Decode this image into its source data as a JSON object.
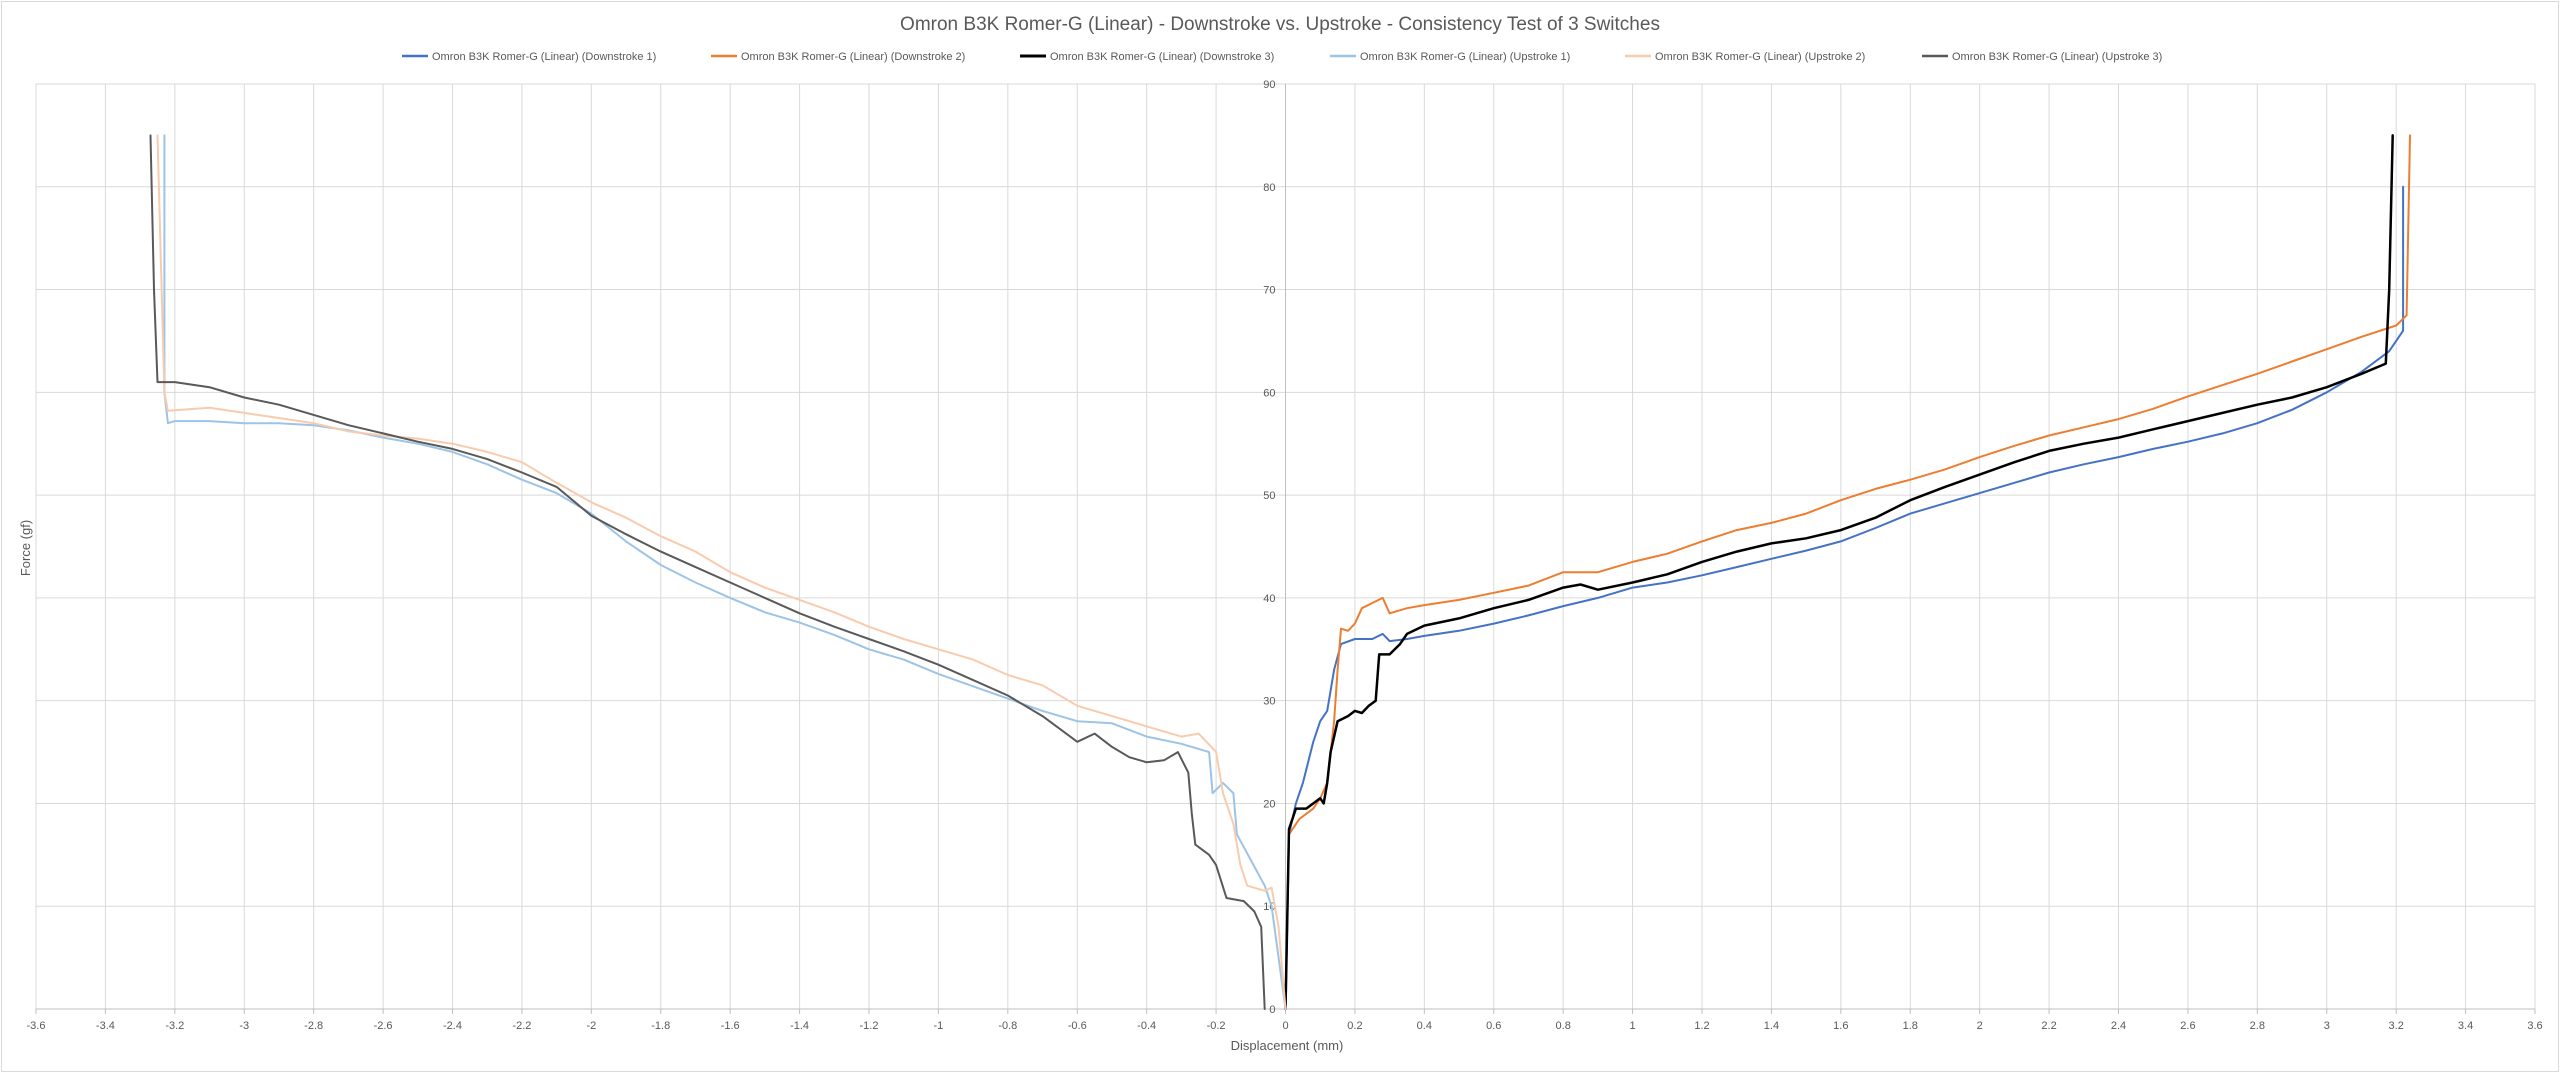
{
  "chart_data": {
    "type": "line",
    "title": "Omron B3K Romer-G (Linear) - Downstroke vs. Upstroke - Consistency Test of 3 Switches",
    "xlabel": "Displacement (mm)",
    "ylabel": "Force (gf)",
    "xlim": [
      -3.6,
      3.6
    ],
    "ylim": [
      0,
      90
    ],
    "x_ticks": [
      "-3.6",
      "-3.4",
      "-3.2",
      "-3",
      "-2.8",
      "-2.6",
      "-2.4",
      "-2.2",
      "-2",
      "-1.8",
      "-1.6",
      "-1.4",
      "-1.2",
      "-1",
      "-0.8",
      "-0.6",
      "-0.4",
      "-0.2",
      "0",
      "0.2",
      "0.4",
      "0.6",
      "0.8",
      "1",
      "1.2",
      "1.4",
      "1.6",
      "1.8",
      "2",
      "2.2",
      "2.4",
      "2.6",
      "2.8",
      "3",
      "3.2",
      "3.4",
      "3.6"
    ],
    "y_ticks": [
      "0",
      "10",
      "20",
      "30",
      "40",
      "50",
      "60",
      "70",
      "80",
      "90"
    ],
    "grid": true,
    "legend_position": "top",
    "series": [
      {
        "name": "Omron B3K Romer-G (Linear) (Downstroke 1)",
        "color": "#4472c4",
        "width": 2,
        "points": [
          [
            0,
            0
          ],
          [
            0.01,
            17
          ],
          [
            0.03,
            20
          ],
          [
            0.05,
            22
          ],
          [
            0.08,
            26
          ],
          [
            0.1,
            28
          ],
          [
            0.12,
            29
          ],
          [
            0.14,
            33
          ],
          [
            0.16,
            35.5
          ],
          [
            0.2,
            36
          ],
          [
            0.25,
            36
          ],
          [
            0.28,
            36.5
          ],
          [
            0.3,
            35.8
          ],
          [
            0.35,
            36
          ],
          [
            0.4,
            36.3
          ],
          [
            0.5,
            36.8
          ],
          [
            0.6,
            37.5
          ],
          [
            0.7,
            38.3
          ],
          [
            0.8,
            39.2
          ],
          [
            0.9,
            40
          ],
          [
            1.0,
            41
          ],
          [
            1.1,
            41.5
          ],
          [
            1.2,
            42.2
          ],
          [
            1.3,
            43
          ],
          [
            1.4,
            43.8
          ],
          [
            1.5,
            44.6
          ],
          [
            1.6,
            45.5
          ],
          [
            1.7,
            46.8
          ],
          [
            1.8,
            48.2
          ],
          [
            1.9,
            49.2
          ],
          [
            2.0,
            50.2
          ],
          [
            2.1,
            51.2
          ],
          [
            2.2,
            52.2
          ],
          [
            2.3,
            53
          ],
          [
            2.4,
            53.7
          ],
          [
            2.5,
            54.5
          ],
          [
            2.6,
            55.2
          ],
          [
            2.7,
            56
          ],
          [
            2.8,
            57
          ],
          [
            2.9,
            58.3
          ],
          [
            3.0,
            60
          ],
          [
            3.1,
            62
          ],
          [
            3.18,
            64
          ],
          [
            3.22,
            66
          ],
          [
            3.22,
            80
          ]
        ]
      },
      {
        "name": "Omron B3K Romer-G (Linear) (Downstroke 2)",
        "color": "#ed7d31",
        "width": 2,
        "points": [
          [
            0,
            0
          ],
          [
            0.01,
            17
          ],
          [
            0.04,
            18.5
          ],
          [
            0.08,
            19.5
          ],
          [
            0.1,
            20.5
          ],
          [
            0.12,
            22
          ],
          [
            0.14,
            28
          ],
          [
            0.15,
            33
          ],
          [
            0.16,
            37
          ],
          [
            0.18,
            36.8
          ],
          [
            0.2,
            37.5
          ],
          [
            0.22,
            39
          ],
          [
            0.25,
            39.5
          ],
          [
            0.28,
            40
          ],
          [
            0.3,
            38.5
          ],
          [
            0.35,
            39
          ],
          [
            0.4,
            39.3
          ],
          [
            0.5,
            39.8
          ],
          [
            0.6,
            40.5
          ],
          [
            0.7,
            41.2
          ],
          [
            0.8,
            42.5
          ],
          [
            0.9,
            42.5
          ],
          [
            1.0,
            43.5
          ],
          [
            1.1,
            44.3
          ],
          [
            1.2,
            45.5
          ],
          [
            1.3,
            46.6
          ],
          [
            1.4,
            47.3
          ],
          [
            1.5,
            48.2
          ],
          [
            1.6,
            49.5
          ],
          [
            1.7,
            50.6
          ],
          [
            1.8,
            51.5
          ],
          [
            1.9,
            52.5
          ],
          [
            2.0,
            53.7
          ],
          [
            2.1,
            54.8
          ],
          [
            2.2,
            55.8
          ],
          [
            2.3,
            56.6
          ],
          [
            2.4,
            57.4
          ],
          [
            2.5,
            58.4
          ],
          [
            2.6,
            59.6
          ],
          [
            2.7,
            60.7
          ],
          [
            2.8,
            61.8
          ],
          [
            2.9,
            63
          ],
          [
            3.0,
            64.2
          ],
          [
            3.1,
            65.4
          ],
          [
            3.2,
            66.5
          ],
          [
            3.23,
            67.5
          ],
          [
            3.24,
            85
          ]
        ]
      },
      {
        "name": "Omron B3K Romer-G (Linear) (Downstroke 3)",
        "color": "#000000",
        "width": 2.5,
        "points": [
          [
            0,
            0
          ],
          [
            0.01,
            17.5
          ],
          [
            0.03,
            19.5
          ],
          [
            0.06,
            19.5
          ],
          [
            0.08,
            20
          ],
          [
            0.1,
            20.5
          ],
          [
            0.11,
            20
          ],
          [
            0.12,
            22
          ],
          [
            0.13,
            25
          ],
          [
            0.15,
            28
          ],
          [
            0.18,
            28.5
          ],
          [
            0.2,
            29
          ],
          [
            0.22,
            28.8
          ],
          [
            0.24,
            29.5
          ],
          [
            0.26,
            30
          ],
          [
            0.27,
            34.5
          ],
          [
            0.3,
            34.5
          ],
          [
            0.33,
            35.5
          ],
          [
            0.35,
            36.5
          ],
          [
            0.4,
            37.3
          ],
          [
            0.5,
            38
          ],
          [
            0.6,
            39
          ],
          [
            0.7,
            39.8
          ],
          [
            0.8,
            41
          ],
          [
            0.85,
            41.3
          ],
          [
            0.9,
            40.8
          ],
          [
            1.0,
            41.5
          ],
          [
            1.1,
            42.3
          ],
          [
            1.2,
            43.5
          ],
          [
            1.3,
            44.5
          ],
          [
            1.4,
            45.3
          ],
          [
            1.5,
            45.8
          ],
          [
            1.6,
            46.6
          ],
          [
            1.7,
            47.8
          ],
          [
            1.8,
            49.5
          ],
          [
            1.9,
            50.8
          ],
          [
            2.0,
            52
          ],
          [
            2.1,
            53.2
          ],
          [
            2.2,
            54.3
          ],
          [
            2.3,
            55
          ],
          [
            2.4,
            55.6
          ],
          [
            2.5,
            56.4
          ],
          [
            2.6,
            57.2
          ],
          [
            2.7,
            58
          ],
          [
            2.8,
            58.8
          ],
          [
            2.9,
            59.5
          ],
          [
            3.0,
            60.5
          ],
          [
            3.1,
            61.8
          ],
          [
            3.17,
            62.8
          ],
          [
            3.18,
            70
          ],
          [
            3.19,
            85
          ]
        ]
      },
      {
        "name": "Omron B3K Romer-G (Linear) (Upstroke 1)",
        "color": "#9dc3e6",
        "width": 2,
        "points": [
          [
            -3.23,
            85
          ],
          [
            -3.23,
            60
          ],
          [
            -3.22,
            57
          ],
          [
            -3.2,
            57.2
          ],
          [
            -3.1,
            57.2
          ],
          [
            -3.0,
            57
          ],
          [
            -2.9,
            57
          ],
          [
            -2.8,
            56.8
          ],
          [
            -2.7,
            56.3
          ],
          [
            -2.6,
            55.6
          ],
          [
            -2.5,
            55
          ],
          [
            -2.4,
            54.2
          ],
          [
            -2.3,
            53
          ],
          [
            -2.2,
            51.5
          ],
          [
            -2.1,
            50.2
          ],
          [
            -2.0,
            48.2
          ],
          [
            -1.9,
            45.5
          ],
          [
            -1.8,
            43.2
          ],
          [
            -1.7,
            41.5
          ],
          [
            -1.6,
            40
          ],
          [
            -1.5,
            38.6
          ],
          [
            -1.4,
            37.6
          ],
          [
            -1.3,
            36.4
          ],
          [
            -1.2,
            35
          ],
          [
            -1.1,
            34
          ],
          [
            -1.0,
            32.6
          ],
          [
            -0.9,
            31.4
          ],
          [
            -0.8,
            30.2
          ],
          [
            -0.7,
            29
          ],
          [
            -0.6,
            28
          ],
          [
            -0.5,
            27.8
          ],
          [
            -0.4,
            26.5
          ],
          [
            -0.3,
            25.8
          ],
          [
            -0.22,
            25
          ],
          [
            -0.21,
            21
          ],
          [
            -0.18,
            22
          ],
          [
            -0.15,
            21
          ],
          [
            -0.14,
            17
          ],
          [
            -0.1,
            14.5
          ],
          [
            -0.06,
            12
          ],
          [
            -0.04,
            10
          ],
          [
            -0.02,
            5
          ],
          [
            0,
            0
          ]
        ]
      },
      {
        "name": "Omron B3K Romer-G (Linear) (Upstroke 2)",
        "color": "#f8cbad",
        "width": 2,
        "points": [
          [
            -3.25,
            85
          ],
          [
            -3.23,
            60
          ],
          [
            -3.22,
            58.2
          ],
          [
            -3.1,
            58.5
          ],
          [
            -3.0,
            58
          ],
          [
            -2.9,
            57.5
          ],
          [
            -2.8,
            57
          ],
          [
            -2.7,
            56.2
          ],
          [
            -2.6,
            55.8
          ],
          [
            -2.5,
            55.5
          ],
          [
            -2.4,
            55
          ],
          [
            -2.3,
            54.2
          ],
          [
            -2.2,
            53.2
          ],
          [
            -2.1,
            51.2
          ],
          [
            -2.0,
            49.3
          ],
          [
            -1.9,
            47.8
          ],
          [
            -1.8,
            46
          ],
          [
            -1.7,
            44.5
          ],
          [
            -1.6,
            42.5
          ],
          [
            -1.5,
            41
          ],
          [
            -1.4,
            39.8
          ],
          [
            -1.3,
            38.6
          ],
          [
            -1.2,
            37.2
          ],
          [
            -1.1,
            36
          ],
          [
            -1.0,
            35
          ],
          [
            -0.9,
            34
          ],
          [
            -0.8,
            32.5
          ],
          [
            -0.7,
            31.5
          ],
          [
            -0.6,
            29.5
          ],
          [
            -0.5,
            28.5
          ],
          [
            -0.4,
            27.5
          ],
          [
            -0.3,
            26.5
          ],
          [
            -0.25,
            26.8
          ],
          [
            -0.2,
            25
          ],
          [
            -0.18,
            21
          ],
          [
            -0.15,
            18
          ],
          [
            -0.13,
            14
          ],
          [
            -0.11,
            12
          ],
          [
            -0.06,
            11.5
          ],
          [
            -0.04,
            11.8
          ],
          [
            -0.02,
            8
          ],
          [
            0,
            0
          ]
        ]
      },
      {
        "name": "Omron B3K Romer-G (Linear) (Upstroke 3)",
        "color": "#595959",
        "width": 2,
        "points": [
          [
            -3.27,
            85
          ],
          [
            -3.26,
            70
          ],
          [
            -3.25,
            61
          ],
          [
            -3.2,
            61
          ],
          [
            -3.1,
            60.5
          ],
          [
            -3.0,
            59.5
          ],
          [
            -2.9,
            58.8
          ],
          [
            -2.8,
            57.8
          ],
          [
            -2.7,
            56.8
          ],
          [
            -2.6,
            56
          ],
          [
            -2.5,
            55.2
          ],
          [
            -2.4,
            54.5
          ],
          [
            -2.3,
            53.5
          ],
          [
            -2.2,
            52.2
          ],
          [
            -2.1,
            50.8
          ],
          [
            -2.0,
            48
          ],
          [
            -1.9,
            46.2
          ],
          [
            -1.8,
            44.5
          ],
          [
            -1.7,
            43
          ],
          [
            -1.6,
            41.5
          ],
          [
            -1.5,
            40
          ],
          [
            -1.4,
            38.5
          ],
          [
            -1.3,
            37.2
          ],
          [
            -1.2,
            36
          ],
          [
            -1.1,
            34.8
          ],
          [
            -1.0,
            33.5
          ],
          [
            -0.9,
            32
          ],
          [
            -0.8,
            30.5
          ],
          [
            -0.7,
            28.5
          ],
          [
            -0.6,
            26
          ],
          [
            -0.55,
            26.8
          ],
          [
            -0.5,
            25.5
          ],
          [
            -0.45,
            24.5
          ],
          [
            -0.4,
            24
          ],
          [
            -0.35,
            24.2
          ],
          [
            -0.31,
            25
          ],
          [
            -0.28,
            23
          ],
          [
            -0.27,
            19
          ],
          [
            -0.26,
            16
          ],
          [
            -0.22,
            15
          ],
          [
            -0.2,
            14
          ],
          [
            -0.17,
            10.8
          ],
          [
            -0.12,
            10.5
          ],
          [
            -0.09,
            9.5
          ],
          [
            -0.07,
            8
          ],
          [
            -0.06,
            0
          ]
        ]
      }
    ]
  }
}
